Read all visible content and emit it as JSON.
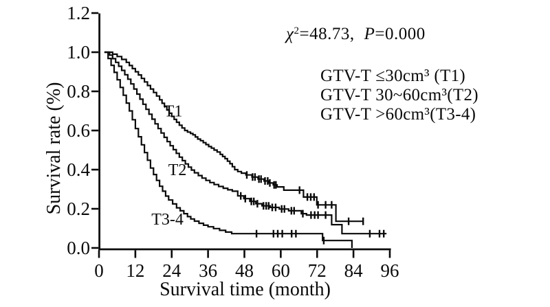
{
  "chart_data": {
    "type": "line",
    "subtype": "kaplan-meier-step-curves",
    "title": "",
    "xlabel": "Survival time (month)",
    "ylabel": "Survival rate (%)",
    "xlim": [
      0,
      96
    ],
    "ylim": [
      0.0,
      1.2
    ],
    "grid": false,
    "legend_position": "upper-right-outside-text",
    "annotation": {
      "chi": "χ",
      "chi_sup": "2",
      "chi_eq": "=48.73,",
      "p": "P",
      "p_eq": "=0.000"
    },
    "x_ticks": [
      {
        "label": "0",
        "value": 0
      },
      {
        "label": "12",
        "value": 12
      },
      {
        "label": "24",
        "value": 24
      },
      {
        "label": "36",
        "value": 36
      },
      {
        "label": "48",
        "value": 48
      },
      {
        "label": "60",
        "value": 60
      },
      {
        "label": "72",
        "value": 72
      },
      {
        "label": "84",
        "value": 84
      },
      {
        "label": "96",
        "value": 96
      }
    ],
    "y_ticks": [
      {
        "label": "0.0",
        "value": 0.0
      },
      {
        "label": "0.2",
        "value": 0.2
      },
      {
        "label": "0.4",
        "value": 0.4
      },
      {
        "label": "0.6",
        "value": 0.6
      },
      {
        "label": "0.8",
        "value": 0.8
      },
      {
        "label": "1.0",
        "value": 1.0
      },
      {
        "label": "1.2",
        "value": 1.2
      }
    ],
    "legend": [
      "GTV-T ≤30cm³ (T1)",
      "GTV-T 30~60cm³(T2)",
      "GTV-T >60cm³(T3-4)"
    ],
    "series": [
      {
        "name": "T1",
        "group": "GTV-T ≤30cm³",
        "label": "T1",
        "label_at": [
          24.5,
          0.7
        ],
        "end_month": 87.3,
        "steps": [
          [
            1.8,
            1.0
          ],
          [
            4.5,
            0.99
          ],
          [
            6,
            0.978
          ],
          [
            7.5,
            0.963
          ],
          [
            9,
            0.948
          ],
          [
            10,
            0.932
          ],
          [
            11,
            0.916
          ],
          [
            12,
            0.9
          ],
          [
            13,
            0.884
          ],
          [
            14,
            0.866
          ],
          [
            15,
            0.848
          ],
          [
            16,
            0.83
          ],
          [
            17,
            0.812
          ],
          [
            18,
            0.794
          ],
          [
            19,
            0.776
          ],
          [
            20,
            0.757
          ],
          [
            20.8,
            0.739
          ],
          [
            21.6,
            0.722
          ],
          [
            22.4,
            0.705
          ],
          [
            23.2,
            0.688
          ],
          [
            24,
            0.672
          ],
          [
            24.8,
            0.657
          ],
          [
            25.6,
            0.642
          ],
          [
            26.5,
            0.627
          ],
          [
            27.4,
            0.613
          ],
          [
            28.3,
            0.6
          ],
          [
            29.2,
            0.592
          ],
          [
            30.2,
            0.585
          ],
          [
            31,
            0.578
          ],
          [
            31.8,
            0.567
          ],
          [
            32.6,
            0.556
          ],
          [
            33.5,
            0.548
          ],
          [
            34.4,
            0.538
          ],
          [
            35.3,
            0.528
          ],
          [
            36.2,
            0.518
          ],
          [
            37.1,
            0.51
          ],
          [
            38,
            0.5
          ],
          [
            39,
            0.49
          ],
          [
            40,
            0.478
          ],
          [
            40.8,
            0.467
          ],
          [
            41.6,
            0.456
          ],
          [
            42.4,
            0.443
          ],
          [
            43.2,
            0.43
          ],
          [
            44,
            0.415
          ],
          [
            44.8,
            0.4
          ],
          [
            45.8,
            0.39
          ],
          [
            47,
            0.382
          ],
          [
            48.5,
            0.373
          ],
          [
            50.5,
            0.362
          ],
          [
            52.5,
            0.352
          ],
          [
            54.5,
            0.342
          ],
          [
            56,
            0.332
          ],
          [
            57.5,
            0.322
          ],
          [
            58.8,
            0.312
          ],
          [
            61,
            0.295
          ],
          [
            67.5,
            0.26
          ],
          [
            71.9,
            0.22
          ],
          [
            78.2,
            0.136
          ]
        ],
        "censors": [
          [
            48.8,
            0.373
          ],
          [
            50.7,
            0.362
          ],
          [
            51.5,
            0.362
          ],
          [
            52.8,
            0.352
          ],
          [
            53.5,
            0.352
          ],
          [
            54.8,
            0.342
          ],
          [
            55.7,
            0.342
          ],
          [
            56.4,
            0.332
          ],
          [
            57.8,
            0.322
          ],
          [
            58.4,
            0.322
          ],
          [
            66.2,
            0.295
          ],
          [
            68.8,
            0.26
          ],
          [
            69.9,
            0.26
          ],
          [
            71,
            0.26
          ],
          [
            72.3,
            0.22
          ],
          [
            74.8,
            0.22
          ],
          [
            76.8,
            0.22
          ],
          [
            82.4,
            0.136
          ],
          [
            87.2,
            0.136
          ]
        ]
      },
      {
        "name": "T2",
        "group": "GTV-T 30~60cm³",
        "label": "T2",
        "label_at": [
          25.9,
          0.4
        ],
        "end_month": 94.9,
        "steps": [
          [
            1.8,
            1.0
          ],
          [
            3.5,
            0.985
          ],
          [
            4.5,
            0.967
          ],
          [
            5.5,
            0.948
          ],
          [
            6.5,
            0.928
          ],
          [
            7.5,
            0.907
          ],
          [
            8.5,
            0.885
          ],
          [
            9.5,
            0.862
          ],
          [
            10.5,
            0.838
          ],
          [
            11.5,
            0.812
          ],
          [
            12.5,
            0.786
          ],
          [
            13.5,
            0.76
          ],
          [
            14.5,
            0.734
          ],
          [
            15.5,
            0.708
          ],
          [
            16.5,
            0.683
          ],
          [
            17.5,
            0.658
          ],
          [
            18.5,
            0.634
          ],
          [
            19.5,
            0.61
          ],
          [
            20.5,
            0.587
          ],
          [
            21.5,
            0.565
          ],
          [
            22.5,
            0.543
          ],
          [
            23.5,
            0.522
          ],
          [
            24.5,
            0.502
          ],
          [
            25.5,
            0.483
          ],
          [
            26.5,
            0.464
          ],
          [
            27.5,
            0.446
          ],
          [
            28.5,
            0.429
          ],
          [
            29.5,
            0.413
          ],
          [
            30.5,
            0.398
          ],
          [
            31.5,
            0.384
          ],
          [
            32.8,
            0.37
          ],
          [
            34,
            0.357
          ],
          [
            35.3,
            0.345
          ],
          [
            36.6,
            0.334
          ],
          [
            38,
            0.324
          ],
          [
            39.5,
            0.314
          ],
          [
            41,
            0.305
          ],
          [
            42.5,
            0.297
          ],
          [
            44,
            0.29
          ],
          [
            45.8,
            0.266
          ],
          [
            47.8,
            0.252
          ],
          [
            49.8,
            0.238
          ],
          [
            51.8,
            0.226
          ],
          [
            53.8,
            0.215
          ],
          [
            56.5,
            0.207
          ],
          [
            59.5,
            0.199
          ],
          [
            62.6,
            0.19
          ],
          [
            66.8,
            0.175
          ],
          [
            68.5,
            0.168
          ],
          [
            76.8,
            0.119
          ],
          [
            80.2,
            0.073
          ]
        ],
        "censors": [
          [
            46.8,
            0.266
          ],
          [
            48.3,
            0.252
          ],
          [
            50.3,
            0.238
          ],
          [
            51.1,
            0.238
          ],
          [
            52.3,
            0.226
          ],
          [
            54.3,
            0.215
          ],
          [
            55.2,
            0.215
          ],
          [
            56,
            0.215
          ],
          [
            57.2,
            0.207
          ],
          [
            58.3,
            0.207
          ],
          [
            60.3,
            0.199
          ],
          [
            61.2,
            0.199
          ],
          [
            63.5,
            0.19
          ],
          [
            64.4,
            0.19
          ],
          [
            67.3,
            0.175
          ],
          [
            70,
            0.168
          ],
          [
            71.2,
            0.168
          ],
          [
            72.3,
            0.168
          ],
          [
            74.8,
            0.168
          ],
          [
            89.4,
            0.073
          ],
          [
            92.6,
            0.073
          ],
          [
            94,
            0.073
          ]
        ]
      },
      {
        "name": "T3-4",
        "group": "GTV-T >60cm³",
        "label": "T3-4",
        "label_at": [
          22.6,
          0.147
        ],
        "end_month": 83.5,
        "steps": [
          [
            1.8,
            1.0
          ],
          [
            3,
            0.968
          ],
          [
            4,
            0.933
          ],
          [
            5,
            0.897
          ],
          [
            6,
            0.859
          ],
          [
            7,
            0.82
          ],
          [
            8,
            0.78
          ],
          [
            9,
            0.74
          ],
          [
            10,
            0.7
          ],
          [
            11,
            0.655
          ],
          [
            12,
            0.61
          ],
          [
            13,
            0.568
          ],
          [
            14,
            0.527
          ],
          [
            15,
            0.487
          ],
          [
            16,
            0.448
          ],
          [
            17,
            0.408
          ],
          [
            18,
            0.375
          ],
          [
            19,
            0.345
          ],
          [
            20,
            0.315
          ],
          [
            21,
            0.29
          ],
          [
            22,
            0.265
          ],
          [
            23,
            0.245
          ],
          [
            24.3,
            0.225
          ],
          [
            25.6,
            0.205
          ],
          [
            26.8,
            0.19
          ],
          [
            28,
            0.175
          ],
          [
            29.2,
            0.16
          ],
          [
            30.3,
            0.148
          ],
          [
            31.5,
            0.137
          ],
          [
            33,
            0.126
          ],
          [
            34.5,
            0.116
          ],
          [
            36,
            0.108
          ],
          [
            37.8,
            0.099
          ],
          [
            39.8,
            0.09
          ],
          [
            41.8,
            0.081
          ],
          [
            43.8,
            0.073
          ],
          [
            73.8,
            0.038
          ],
          [
            83.5,
            0.0
          ]
        ],
        "censors": [
          [
            52,
            0.073
          ],
          [
            57.6,
            0.073
          ],
          [
            59,
            0.073
          ],
          [
            60.5,
            0.073
          ],
          [
            63.6,
            0.073
          ],
          [
            65,
            0.073
          ],
          [
            74.2,
            0.038
          ]
        ]
      }
    ],
    "statistics": {
      "chi_squared": 48.73,
      "p_value": 0.0
    }
  }
}
